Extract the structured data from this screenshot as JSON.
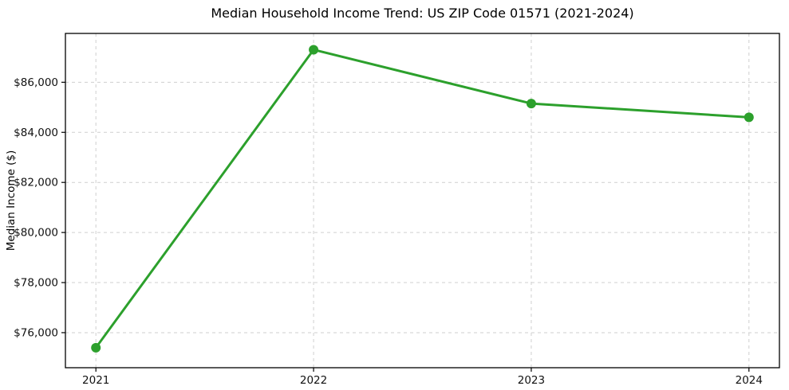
{
  "chart_data": {
    "type": "line",
    "title": "Median Household Income Trend: US ZIP Code 01571 (2021-2024)",
    "xlabel": "",
    "ylabel": "Median Income ($)",
    "x": [
      2021,
      2022,
      2023,
      2024
    ],
    "series": [
      {
        "name": "Median Household Income",
        "values": [
          75400,
          87300,
          85150,
          84600
        ],
        "color": "#2ca02c",
        "marker": "circle"
      }
    ],
    "xticks": [
      {
        "value": 2021,
        "label": "2021"
      },
      {
        "value": 2022,
        "label": "2022"
      },
      {
        "value": 2023,
        "label": "2023"
      },
      {
        "value": 2024,
        "label": "2024"
      }
    ],
    "yticks": [
      {
        "value": 76000,
        "label": "$76,000"
      },
      {
        "value": 78000,
        "label": "$78,000"
      },
      {
        "value": 80000,
        "label": "$80,000"
      },
      {
        "value": 82000,
        "label": "$82,000"
      },
      {
        "value": 84000,
        "label": "$84,000"
      },
      {
        "value": 86000,
        "label": "$86,000"
      }
    ],
    "xlim": [
      2020.86,
      2024.14
    ],
    "ylim": [
      74600,
      87950
    ],
    "grid": true,
    "grid_style": "dashed",
    "grid_color": "#cfcfcf",
    "frame_color": "#000000",
    "background": "#ffffff",
    "legend": "none"
  }
}
